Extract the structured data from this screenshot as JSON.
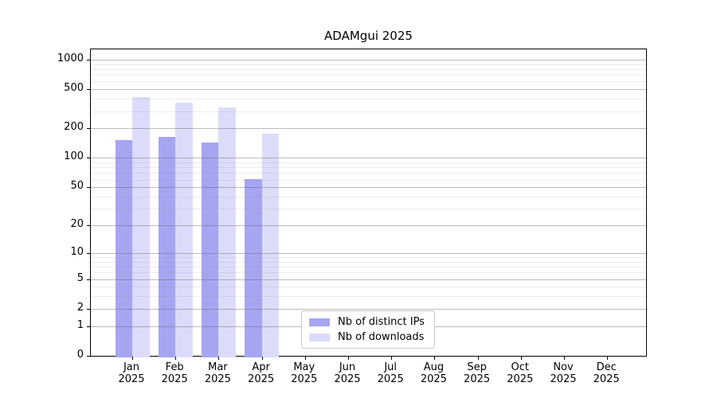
{
  "chart_data": {
    "type": "bar",
    "title": "ADAMgui 2025",
    "categories": [
      "Jan 2025",
      "Feb 2025",
      "Mar 2025",
      "Apr 2025",
      "May 2025",
      "Jun 2025",
      "Jul 2025",
      "Aug 2025",
      "Sep 2025",
      "Oct 2025",
      "Nov 2025",
      "Dec 2025"
    ],
    "series": [
      {
        "name": "Nb of distinct IPs",
        "color": "#a5a5f2",
        "values": [
          152,
          163,
          145,
          61,
          null,
          null,
          null,
          null,
          null,
          null,
          null,
          null
        ]
      },
      {
        "name": "Nb of downloads",
        "color": "#dcdcfa",
        "values": [
          417,
          366,
          327,
          177,
          null,
          null,
          null,
          null,
          null,
          null,
          null,
          null
        ]
      }
    ],
    "xlabel": "",
    "ylabel": "",
    "y_scale": "log10(value+1)",
    "y_ticks": [
      0,
      1,
      2,
      5,
      10,
      20,
      50,
      100,
      200,
      500,
      1000
    ],
    "ylim": [
      0,
      1270
    ],
    "grid": "horizontal major+minor, drawn over bars",
    "legend_position": "bottom-center-inside"
  }
}
